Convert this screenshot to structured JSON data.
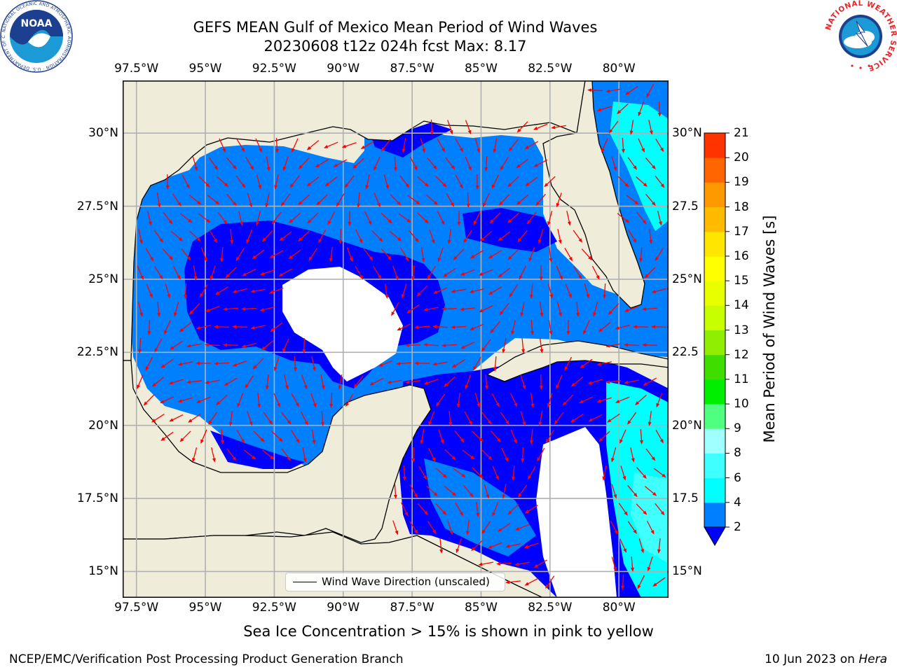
{
  "header": {
    "title_line1": "GEFS MEAN Gulf of Mexico Mean Period of Wind Waves",
    "title_line2": "20230608 t12z 024h fcst   Max: 8.17"
  },
  "logos": {
    "left": {
      "icon": "noaa-logo-icon",
      "text": "NOAA",
      "ring_text": "NATIONAL OCEANIC AND ATMOSPHERIC ADMINISTRATION · U.S. DEPARTMENT OF COMMERCE"
    },
    "right": {
      "icon": "nws-logo-icon",
      "ring_text": "NATIONAL WEATHER SERVICE"
    }
  },
  "map": {
    "lon_range": [
      -98,
      -78.2
    ],
    "lat_range": [
      14.1,
      31.8
    ],
    "lon_ticks": [
      {
        "value": -97.5,
        "label": "97.5°W"
      },
      {
        "value": -95,
        "label": "95°W"
      },
      {
        "value": -92.5,
        "label": "92.5°W"
      },
      {
        "value": -90,
        "label": "90°W"
      },
      {
        "value": -87.5,
        "label": "87.5°W"
      },
      {
        "value": -85,
        "label": "85°W"
      },
      {
        "value": -82.5,
        "label": "82.5°W"
      },
      {
        "value": -80,
        "label": "80°W"
      }
    ],
    "lat_ticks_left": [
      {
        "value": 30,
        "label": "30°N"
      },
      {
        "value": 27.5,
        "label": "27.5°N"
      },
      {
        "value": 25,
        "label": "25°N"
      },
      {
        "value": 22.5,
        "label": "22.5°N"
      },
      {
        "value": 20,
        "label": "20°N"
      },
      {
        "value": 17.5,
        "label": "17.5°N"
      },
      {
        "value": 15,
        "label": "15°N"
      }
    ],
    "lat_ticks_right": [
      {
        "value": 30,
        "label": "30°N"
      },
      {
        "value": 27.5,
        "label": "27.5"
      },
      {
        "value": 25,
        "label": "25°N"
      },
      {
        "value": 22.5,
        "label": "22.5"
      },
      {
        "value": 20,
        "label": "20°N"
      },
      {
        "value": 17.5,
        "label": "17.5"
      },
      {
        "value": 15,
        "label": "15°N"
      }
    ],
    "grid": true,
    "colors": {
      "land": "#efedda",
      "ocean_band_2_4": "#0080ff",
      "ocean_below_2": "#0000ff",
      "ocean_band_4_6": "#00ffff",
      "ocean_band_6_8": "#40ffff",
      "arrow": "#ff0000",
      "coast": "#000000"
    },
    "legend_label": "Wind Wave Direction (unscaled)",
    "arrow_direction_deg": 200
  },
  "colorbar": {
    "title": "Mean Period of Wind Waves [s]",
    "levels": [
      2,
      4,
      6,
      8,
      9,
      10,
      11,
      12,
      13,
      14,
      15,
      16,
      17,
      18,
      19,
      20,
      21
    ],
    "labels": [
      "2",
      "4",
      "6",
      "8",
      "9",
      "10",
      "11",
      "12",
      "13",
      "14",
      "15",
      "16",
      "17",
      "18",
      "19",
      "20",
      "21"
    ],
    "colors": [
      "#0080ff",
      "#00ffff",
      "#40ffff",
      "#a0ffff",
      "#50ff80",
      "#00ee00",
      "#40dd00",
      "#90ee00",
      "#c8ff00",
      "#e8ff00",
      "#ffff00",
      "#ffe600",
      "#ffbb00",
      "#ff9900",
      "#ff6600",
      "#ff3300"
    ],
    "under_color": "#0000ff",
    "extend": "min"
  },
  "footer": {
    "note": "Sea Ice Concentration > 15% is shown in pink to yellow",
    "credit": "NCEP/EMC/Verification Post Processing Product Generation Branch",
    "date_prefix": "10 Jun 2023 on ",
    "date_host": "Hera"
  }
}
